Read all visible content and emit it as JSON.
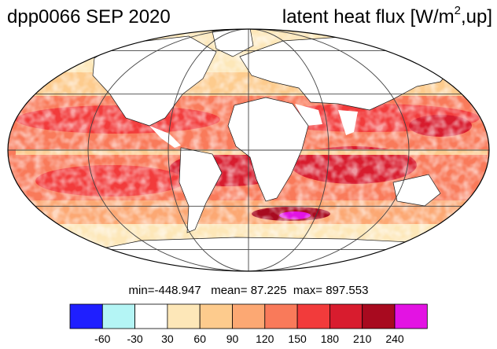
{
  "header": {
    "left_title": "dpp0066 SEP 2020",
    "right_title_prefix": "latent heat flux [W/m",
    "right_title_sup": "2",
    "right_title_suffix": ",up]"
  },
  "stats": {
    "min_label": "min=",
    "min": "-448.947",
    "mean_label": "mean=",
    "mean": "87.225",
    "max_label": "max=",
    "max": "897.553"
  },
  "colorbar": {
    "colors": [
      "#1f1fff",
      "#b4f5f5",
      "#ffffff",
      "#fde7b8",
      "#fdcb8d",
      "#fca873",
      "#f97a5a",
      "#f23b3b",
      "#d81c2e",
      "#a80a1f",
      "#e313e3"
    ],
    "tick_labels": [
      "-60",
      "-30",
      "30",
      "60",
      "90",
      "120",
      "150",
      "180",
      "210",
      "240"
    ]
  },
  "map": {
    "projection": "mollweide",
    "colors": {
      "ocean_base": "#f97a5a",
      "land_fill": "#ffffff",
      "coast": "#1a1a1a",
      "graticule": "#444444"
    }
  }
}
